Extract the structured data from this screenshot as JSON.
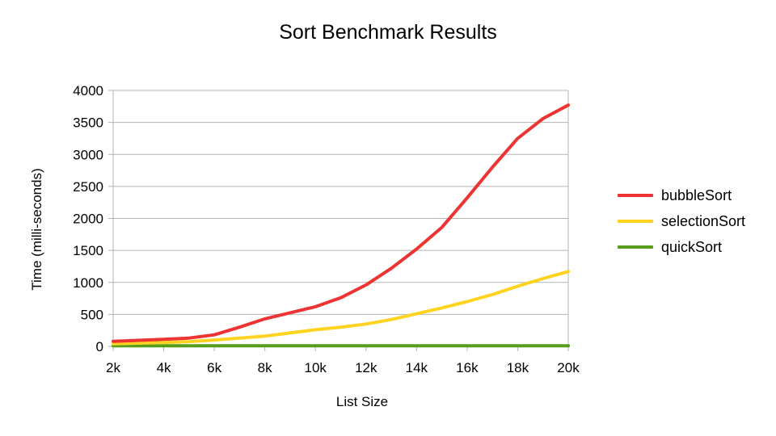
{
  "chart_data": {
    "type": "line",
    "title": "Sort Benchmark Results",
    "xlabel": "List Size",
    "ylabel": "Time (milli-seconds)",
    "x": [
      2000,
      4000,
      5000,
      6000,
      7000,
      8000,
      10000,
      11000,
      12000,
      13000,
      14000,
      15000,
      16000,
      17000,
      18000,
      19000,
      20000
    ],
    "x_tick_labels": [
      "2k",
      "4k",
      "6k",
      "8k",
      "10k",
      "12k",
      "14k",
      "16k",
      "18k",
      "20k"
    ],
    "x_ticks": [
      2000,
      4000,
      6000,
      8000,
      10000,
      12000,
      14000,
      16000,
      18000,
      20000
    ],
    "y_ticks": [
      0,
      500,
      1000,
      1500,
      2000,
      2500,
      3000,
      3500,
      4000
    ],
    "y_tick_labels": [
      "0",
      "500",
      "1000",
      "1500",
      "2000",
      "2500",
      "3000",
      "3500",
      "4000"
    ],
    "xlim": [
      2000,
      20000
    ],
    "ylim": [
      0,
      4000
    ],
    "grid": true,
    "legend_position": "right",
    "series": [
      {
        "name": "bubbleSort",
        "color": "#ee3333",
        "values": [
          80,
          110,
          130,
          180,
          300,
          430,
          620,
          760,
          960,
          1220,
          1520,
          1860,
          2320,
          2800,
          3250,
          3560,
          3770
        ]
      },
      {
        "name": "selectionSort",
        "color": "#ffd320",
        "values": [
          40,
          60,
          75,
          100,
          130,
          160,
          260,
          300,
          350,
          420,
          510,
          600,
          700,
          810,
          940,
          1060,
          1170
        ]
      },
      {
        "name": "quickSort",
        "color": "#579d1c",
        "values": [
          10,
          10,
          10,
          10,
          10,
          10,
          10,
          10,
          10,
          10,
          10,
          10,
          10,
          10,
          10,
          10,
          10
        ]
      }
    ]
  }
}
